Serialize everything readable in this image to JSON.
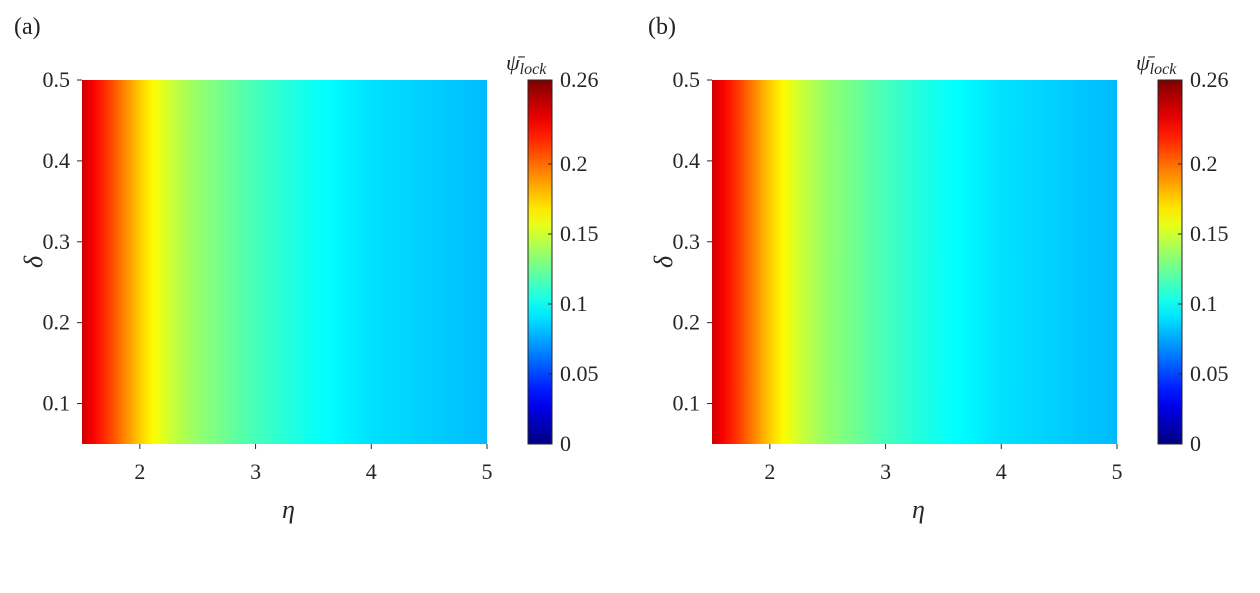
{
  "panels": [
    {
      "label": "(a)"
    },
    {
      "label": "(b)"
    }
  ],
  "chart_data": [
    {
      "type": "heatmap",
      "xlabel": "η",
      "ylabel": "δ",
      "xlim": [
        1.5,
        5
      ],
      "ylim": [
        0.05,
        0.5
      ],
      "x_ticks": [
        "2",
        "3",
        "4",
        "5"
      ],
      "x_tick_values": [
        2,
        3,
        4,
        5
      ],
      "y_ticks": [
        "0.1",
        "0.2",
        "0.3",
        "0.4",
        "0.5"
      ],
      "y_tick_values": [
        0.1,
        0.2,
        0.3,
        0.4,
        0.5
      ],
      "colorbar": {
        "label": "ψ̄lock",
        "label_base": "ψ̄",
        "label_sub": "lock",
        "range": [
          0,
          0.26
        ],
        "ticks": [
          "0",
          "0.05",
          "0.1",
          "0.15",
          "0.2",
          "0.26"
        ],
        "tick_values": [
          0,
          0.05,
          0.1,
          0.15,
          0.2,
          0.26
        ],
        "colormap": "jet"
      },
      "z_profile_over_eta": {
        "eta": [
          1.5,
          1.75,
          2.0,
          2.25,
          2.5,
          3.0,
          3.5,
          4.0,
          4.5,
          5.0
        ],
        "psi_lock": [
          0.24,
          0.21,
          0.175,
          0.15,
          0.135,
          0.115,
          0.1,
          0.09,
          0.085,
          0.08
        ]
      },
      "note_independent_of": "δ"
    },
    {
      "type": "heatmap",
      "xlabel": "η",
      "ylabel": "δ",
      "xlim": [
        1.5,
        5
      ],
      "ylim": [
        0.05,
        0.5
      ],
      "x_ticks": [
        "2",
        "3",
        "4",
        "5"
      ],
      "x_tick_values": [
        2,
        3,
        4,
        5
      ],
      "y_ticks": [
        "0.1",
        "0.2",
        "0.3",
        "0.4",
        "0.5"
      ],
      "y_tick_values": [
        0.1,
        0.2,
        0.3,
        0.4,
        0.5
      ],
      "colorbar": {
        "label": "ψ̄lock",
        "label_base": "ψ̄",
        "label_sub": "lock",
        "range": [
          0,
          0.26
        ],
        "ticks": [
          "0",
          "0.05",
          "0.1",
          "0.15",
          "0.2",
          "0.26"
        ],
        "tick_values": [
          0,
          0.05,
          0.1,
          0.15,
          0.2,
          0.26
        ],
        "colormap": "jet"
      },
      "z_profile_over_eta": {
        "eta": [
          1.5,
          1.75,
          2.0,
          2.25,
          2.5,
          3.0,
          3.5,
          4.0,
          4.5,
          5.0
        ],
        "psi_lock": [
          0.24,
          0.21,
          0.175,
          0.15,
          0.135,
          0.115,
          0.1,
          0.09,
          0.085,
          0.08
        ]
      },
      "note_independent_of": "δ"
    }
  ]
}
